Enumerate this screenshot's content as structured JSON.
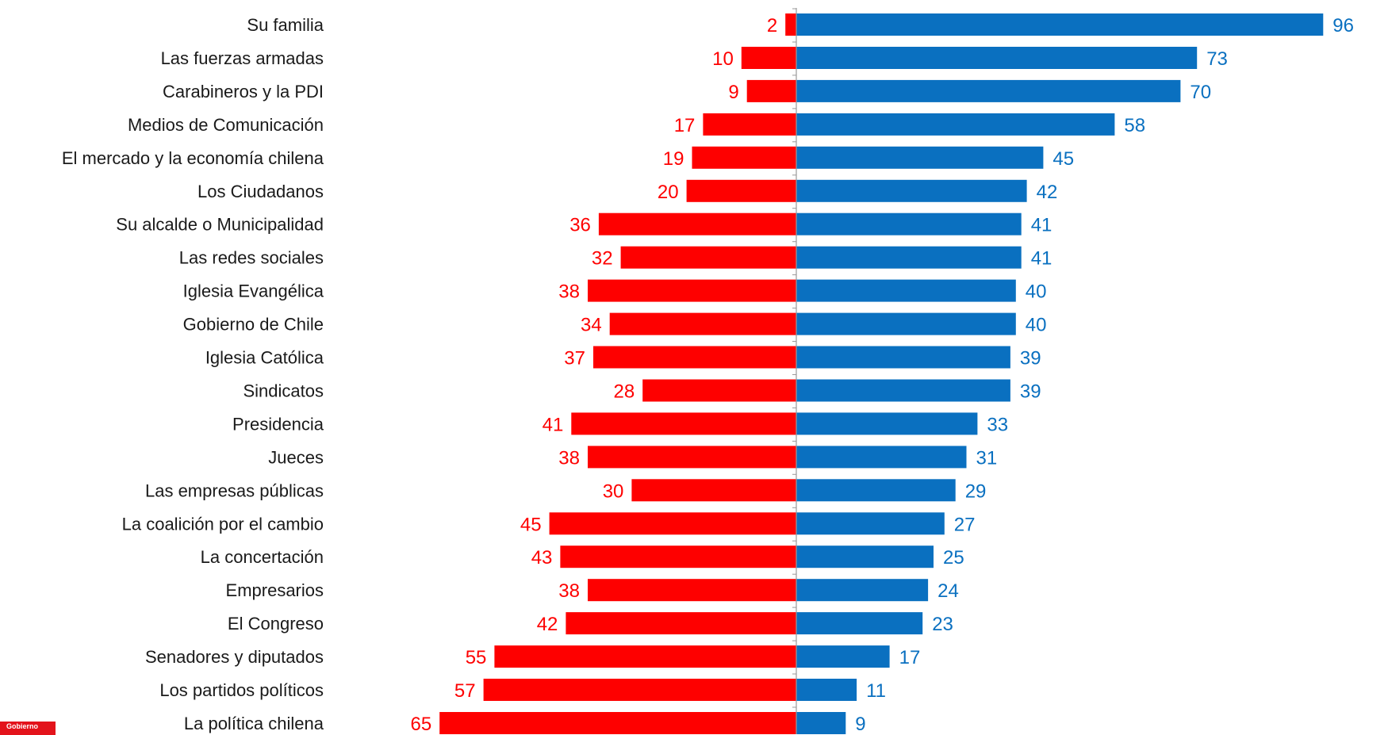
{
  "colors": {
    "negative": "#fe0000",
    "positive": "#0a70c0",
    "axis": "#9a9a9a"
  },
  "badge": {
    "text": "Gobierno"
  },
  "chart_data": {
    "type": "bar",
    "orientation": "horizontal-diverging",
    "title": "",
    "xlabel": "",
    "ylabel": "",
    "grid": false,
    "categories": [
      "Su familia",
      "Las fuerzas armadas",
      "Carabineros y la PDI",
      "Medios de Comunicación",
      "El mercado y la economía chilena",
      "Los Ciudadanos",
      "Su alcalde o Municipalidad",
      "Las redes sociales",
      "Iglesia Evangélica",
      "Gobierno de Chile",
      "Iglesia Católica",
      "Sindicatos",
      "Presidencia",
      "Jueces",
      "Las empresas públicas",
      "La coalición por el cambio",
      "La concertación",
      "Empresarios",
      "El Congreso",
      "Senadores y diputados",
      "Los partidos políticos",
      "La política chilena"
    ],
    "series": [
      {
        "values": [
          2,
          10,
          9,
          17,
          19,
          20,
          36,
          32,
          38,
          34,
          37,
          28,
          41,
          38,
          30,
          45,
          43,
          38,
          42,
          55,
          57,
          65
        ]
      },
      {
        "values": [
          96,
          73,
          70,
          58,
          45,
          42,
          41,
          41,
          40,
          40,
          39,
          39,
          33,
          31,
          29,
          27,
          25,
          24,
          23,
          17,
          11,
          9
        ]
      }
    ]
  }
}
